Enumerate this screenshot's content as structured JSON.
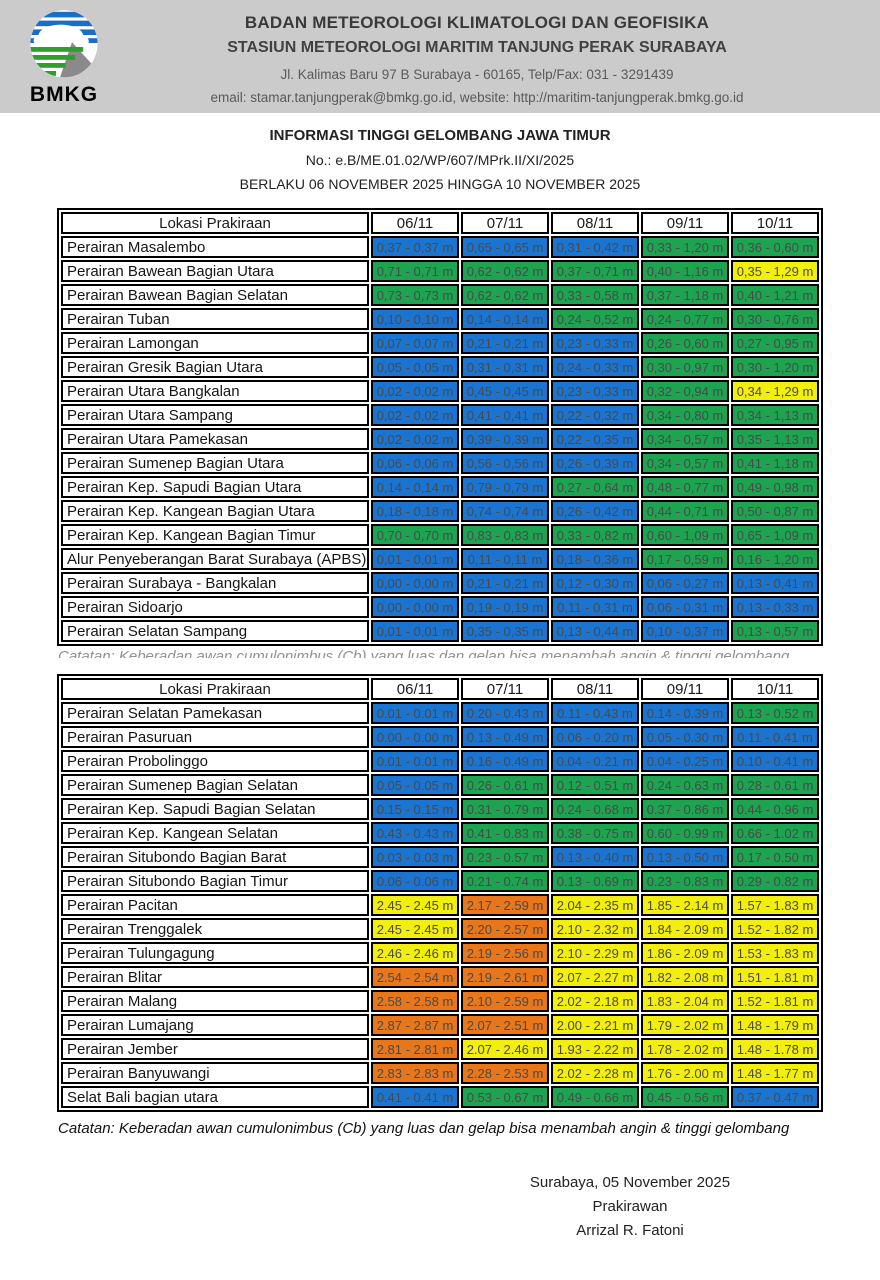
{
  "header": {
    "logo_text": "BMKG",
    "org_line1": "BADAN METEOROLOGI KLIMATOLOGI DAN GEOFISIKA",
    "org_line2": "STASIUN METEOROLOGI MARITIM TANJUNG PERAK SURABAYA",
    "address": "Jl. Kalimas Baru 97 B Surabaya - 60165, Telp/Fax: 031 - 3291439",
    "contact": "email: stamar.tanjungperak@bmkg.go.id, website: http://maritim-tanjungperak.bmkg.go.id"
  },
  "title": {
    "line1": "INFORMASI TINGGI GELOMBANG JAWA TIMUR",
    "line2": "No.: e.B/ME.01.02/WP/607/MPrk.II/XI/2025",
    "line3": "BERLAKU 06 NOVEMBER 2025 HINGGA 10 NOVEMBER 2025"
  },
  "colors": {
    "blue": "#1B74D0",
    "green": "#1EA351",
    "yellow": "#F2EE0E",
    "orange": "#E8771C",
    "band_gray": "#CBCBCB",
    "cell_text": "#4A4A4A"
  },
  "table1": {
    "columns": [
      "Lokasi Prakiraan",
      "06/11",
      "07/11",
      "08/11",
      "09/11",
      "10/11"
    ],
    "rows": [
      {
        "location": "Perairan Masalembo",
        "values": [
          "0,37 - 0,37 m",
          "0,65 - 0,65 m",
          "0,31 - 0,42 m",
          "0,33 - 1,20 m",
          "0,36 - 0,60 m"
        ],
        "colors": [
          "blue",
          "blue",
          "blue",
          "green",
          "green"
        ]
      },
      {
        "location": "Perairan Bawean Bagian Utara",
        "values": [
          "0,71 - 0,71 m",
          "0,62 - 0,62 m",
          "0,37 - 0,71 m",
          "0,40 - 1,16 m",
          "0,35 - 1,29 m"
        ],
        "colors": [
          "green",
          "green",
          "green",
          "green",
          "yellow"
        ]
      },
      {
        "location": "Perairan Bawean Bagian Selatan",
        "values": [
          "0,73 - 0,73 m",
          "0,62 - 0,62 m",
          "0,33 - 0,58 m",
          "0,37 - 1,18 m",
          "0,40 - 1,21 m"
        ],
        "colors": [
          "green",
          "green",
          "green",
          "green",
          "green"
        ]
      },
      {
        "location": "Perairan Tuban",
        "values": [
          "0,10 - 0,10 m",
          "0,14 - 0,14 m",
          "0,24 - 0,52 m",
          "0,24 - 0,77 m",
          "0,30 - 0,76 m"
        ],
        "colors": [
          "blue",
          "blue",
          "green",
          "green",
          "green"
        ]
      },
      {
        "location": "Perairan Lamongan",
        "values": [
          "0,07 - 0,07 m",
          "0,21 - 0,21 m",
          "0,23 - 0,33 m",
          "0,26 - 0,60 m",
          "0,27 - 0,95 m"
        ],
        "colors": [
          "blue",
          "blue",
          "blue",
          "green",
          "green"
        ]
      },
      {
        "location": "Perairan Gresik Bagian Utara",
        "values": [
          "0,05 - 0,05 m",
          "0,31 - 0,31 m",
          "0,24 - 0,33 m",
          "0,30 - 0,97 m",
          "0,30 - 1,20 m"
        ],
        "colors": [
          "blue",
          "blue",
          "blue",
          "green",
          "green"
        ]
      },
      {
        "location": "Perairan Utara Bangkalan",
        "values": [
          "0,02 - 0,02 m",
          "0,45 - 0,45 m",
          "0,23 - 0,33 m",
          "0,32 - 0,94 m",
          "0,34 - 1,29 m"
        ],
        "colors": [
          "blue",
          "blue",
          "blue",
          "green",
          "yellow"
        ]
      },
      {
        "location": "Perairan Utara Sampang",
        "values": [
          "0,02 - 0,02 m",
          "0,41 - 0,41 m",
          "0,22 - 0,32 m",
          "0,34 - 0,80 m",
          "0,34 - 1,13 m"
        ],
        "colors": [
          "blue",
          "blue",
          "blue",
          "green",
          "green"
        ]
      },
      {
        "location": "Perairan Utara Pamekasan",
        "values": [
          "0,02 - 0,02 m",
          "0,39 - 0,39 m",
          "0,22 - 0,35 m",
          "0,34 - 0,57 m",
          "0,35 - 1,13 m"
        ],
        "colors": [
          "blue",
          "blue",
          "blue",
          "green",
          "green"
        ]
      },
      {
        "location": "Perairan Sumenep Bagian Utara",
        "values": [
          "0,06 - 0,06 m",
          "0,56 - 0,56 m",
          "0,26 - 0,39 m",
          "0,34 - 0,57 m",
          "0,41 - 1,18 m"
        ],
        "colors": [
          "blue",
          "blue",
          "blue",
          "green",
          "green"
        ]
      },
      {
        "location": "Perairan Kep. Sapudi Bagian Utara",
        "values": [
          "0,14 - 0,14 m",
          "0,79 - 0,79 m",
          "0,27 - 0,64 m",
          "0,48 - 0,77 m",
          "0,49 - 0,98 m"
        ],
        "colors": [
          "blue",
          "blue",
          "green",
          "green",
          "green"
        ]
      },
      {
        "location": "Perairan Kep. Kangean Bagian Utara",
        "values": [
          "0,18 - 0,18 m",
          "0,74 - 0,74 m",
          "0,26 - 0,42 m",
          "0,44 - 0,71 m",
          "0,50 - 0,87 m"
        ],
        "colors": [
          "blue",
          "blue",
          "blue",
          "green",
          "green"
        ]
      },
      {
        "location": "Perairan Kep. Kangean  Bagian Timur",
        "values": [
          "0,70 - 0,70 m",
          "0,83 - 0,83 m",
          "0,33 - 0,82 m",
          "0,60 - 1,09 m",
          "0,65 - 1,09 m"
        ],
        "colors": [
          "green",
          "green",
          "green",
          "green",
          "green"
        ]
      },
      {
        "location": "Alur Penyeberangan Barat Surabaya (APBS)",
        "values": [
          "0,01 - 0,01 m",
          "0,11 - 0,11 m",
          "0,18 - 0,36 m",
          "0,17 - 0,59 m",
          "0,16 - 1,20 m"
        ],
        "colors": [
          "blue",
          "blue",
          "blue",
          "green",
          "green"
        ]
      },
      {
        "location": "Perairan Surabaya - Bangkalan",
        "values": [
          "0,00 - 0,00 m",
          "0,21 - 0,21 m",
          "0,12 - 0,30 m",
          "0,06 - 0,27 m",
          "0,13 - 0,41 m"
        ],
        "colors": [
          "blue",
          "blue",
          "blue",
          "blue",
          "blue"
        ]
      },
      {
        "location": "Perairan Sidoarjo",
        "values": [
          "0,00 - 0,00 m",
          "0,19 - 0,19 m",
          "0,11 - 0,31 m",
          "0,06 - 0,31 m",
          "0,13 - 0,33 m"
        ],
        "colors": [
          "blue",
          "blue",
          "blue",
          "blue",
          "blue"
        ]
      },
      {
        "location": "Perairan Selatan Sampang",
        "values": [
          "0,01 - 0,01 m",
          "0,35 - 0,35 m",
          "0,13 - 0,44 m",
          "0,10 - 0,37 m",
          "0,13 - 0,57 m"
        ],
        "colors": [
          "blue",
          "blue",
          "blue",
          "blue",
          "green"
        ]
      }
    ]
  },
  "table2": {
    "columns": [
      "Lokasi Prakiraan",
      "06/11",
      "07/11",
      "08/11",
      "09/11",
      "10/11"
    ],
    "rows": [
      {
        "location": "Perairan Selatan Pamekasan",
        "values": [
          "0.01 - 0.01 m",
          "0.20 - 0.43 m",
          "0.11 - 0.43 m",
          "0.14 - 0.39 m",
          "0.13 - 0.52 m"
        ],
        "colors": [
          "blue",
          "blue",
          "blue",
          "blue",
          "green"
        ]
      },
      {
        "location": "Perairan Pasuruan",
        "values": [
          "0.00 - 0.00 m",
          "0.13 - 0.49 m",
          "0.06 - 0.20 m",
          "0.05 - 0.30 m",
          "0.11 - 0.41 m"
        ],
        "colors": [
          "blue",
          "blue",
          "blue",
          "blue",
          "blue"
        ]
      },
      {
        "location": "Perairan Probolinggo",
        "values": [
          "0.01 - 0.01 m",
          "0.16 - 0.49 m",
          "0.04 - 0.21 m",
          "0.04 - 0.25 m",
          "0.10 - 0.41 m"
        ],
        "colors": [
          "blue",
          "blue",
          "blue",
          "blue",
          "blue"
        ]
      },
      {
        "location": "Perairan Sumenep Bagian Selatan",
        "values": [
          "0.05 - 0.05 m",
          "0.26 - 0.61 m",
          "0.12 - 0.51 m",
          "0.24 - 0.63 m",
          "0.28 - 0.61 m"
        ],
        "colors": [
          "blue",
          "green",
          "green",
          "green",
          "green"
        ]
      },
      {
        "location": "Perairan Kep. Sapudi Bagian Selatan",
        "values": [
          "0.15 - 0.15 m",
          "0.31 - 0.79 m",
          "0.24 - 0.68 m",
          "0.37 - 0.86 m",
          "0.44 - 0.96 m"
        ],
        "colors": [
          "blue",
          "green",
          "green",
          "green",
          "green"
        ]
      },
      {
        "location": "Perairan Kep. Kangean Selatan",
        "values": [
          "0.43 - 0.43 m",
          "0.41 - 0.83 m",
          "0.38 - 0.75 m",
          "0.60 - 0.99 m",
          "0.66 - 1.02 m"
        ],
        "colors": [
          "blue",
          "green",
          "green",
          "green",
          "green"
        ]
      },
      {
        "location": "Perairan Situbondo Bagian Barat",
        "values": [
          "0.03 - 0.03 m",
          "0.23 - 0.57 m",
          "0.13 - 0.40 m",
          "0.13 - 0.50 m",
          "0.17 - 0.50 m"
        ],
        "colors": [
          "blue",
          "green",
          "blue",
          "blue",
          "green"
        ]
      },
      {
        "location": "Perairan Situbondo Bagian Timur",
        "values": [
          "0.06 - 0.06 m",
          "0.21 - 0.74 m",
          "0.13 - 0.69 m",
          "0.23 - 0.83 m",
          "0.29 - 0.82 m"
        ],
        "colors": [
          "blue",
          "green",
          "green",
          "green",
          "green"
        ]
      },
      {
        "location": "Perairan Pacitan",
        "values": [
          "2.45 - 2.45 m",
          "2.17 - 2.59 m",
          "2.04 - 2.35 m",
          "1.85 - 2.14 m",
          "1.57 - 1.83 m"
        ],
        "colors": [
          "yellow",
          "orange",
          "yellow",
          "yellow",
          "yellow"
        ]
      },
      {
        "location": "Perairan Trenggalek",
        "values": [
          "2.45 - 2.45 m",
          "2.20 - 2.57 m",
          "2.10 - 2.32 m",
          "1.84 - 2.09 m",
          "1.52 - 1.82 m"
        ],
        "colors": [
          "yellow",
          "orange",
          "yellow",
          "yellow",
          "yellow"
        ]
      },
      {
        "location": "Perairan Tulungagung",
        "values": [
          "2.46 - 2.46 m",
          "2.19 - 2.56 m",
          "2.10 - 2.29 m",
          "1.86 - 2.09 m",
          "1.53 - 1.83 m"
        ],
        "colors": [
          "yellow",
          "orange",
          "yellow",
          "yellow",
          "yellow"
        ]
      },
      {
        "location": "Perairan Blitar",
        "values": [
          "2.54 - 2.54 m",
          "2.19 - 2.61 m",
          "2.07 - 2.27 m",
          "1.82 - 2.08 m",
          "1.51 - 1.81 m"
        ],
        "colors": [
          "orange",
          "orange",
          "yellow",
          "yellow",
          "yellow"
        ]
      },
      {
        "location": "Perairan Malang",
        "values": [
          "2.58 - 2.58 m",
          "2.10 - 2.59 m",
          "2.02 - 2.18 m",
          "1.83 - 2.04 m",
          "1.52 - 1.81 m"
        ],
        "colors": [
          "orange",
          "orange",
          "yellow",
          "yellow",
          "yellow"
        ]
      },
      {
        "location": "Perairan Lumajang",
        "values": [
          "2.87 - 2.87 m",
          "2.07 - 2.51 m",
          "2.00 - 2.21 m",
          "1.79 - 2.02 m",
          "1.48 - 1.79 m"
        ],
        "colors": [
          "orange",
          "orange",
          "yellow",
          "yellow",
          "yellow"
        ]
      },
      {
        "location": "Perairan Jember",
        "values": [
          "2.81 - 2.81 m",
          "2.07 - 2.46 m",
          "1.93 - 2.22 m",
          "1.78 - 2.02 m",
          "1.48 - 1.78 m"
        ],
        "colors": [
          "orange",
          "yellow",
          "yellow",
          "yellow",
          "yellow"
        ]
      },
      {
        "location": "Perairan Banyuwangi",
        "values": [
          "2.83 - 2.83 m",
          "2.28 - 2.53 m",
          "2.02 - 2.28 m",
          "1.76 - 2.00 m",
          "1.48 - 1.77 m"
        ],
        "colors": [
          "orange",
          "orange",
          "yellow",
          "yellow",
          "yellow"
        ]
      },
      {
        "location": "Selat Bali bagian utara",
        "values": [
          "0.41 - 0.41 m",
          "0.53 - 0.67 m",
          "0.49 - 0.66 m",
          "0.45 - 0.56 m",
          "0.37 - 0.47 m"
        ],
        "colors": [
          "blue",
          "green",
          "green",
          "green",
          "blue"
        ]
      }
    ]
  },
  "note": "Catatan: Keberadan awan cumulonimbus (Cb) yang luas dan gelap bisa menambah angin & tinggi gelombang",
  "signature": {
    "place_date": "Surabaya, 05 November 2025",
    "role": "Prakirawan",
    "name": "Arrizal R. Fatoni"
  }
}
